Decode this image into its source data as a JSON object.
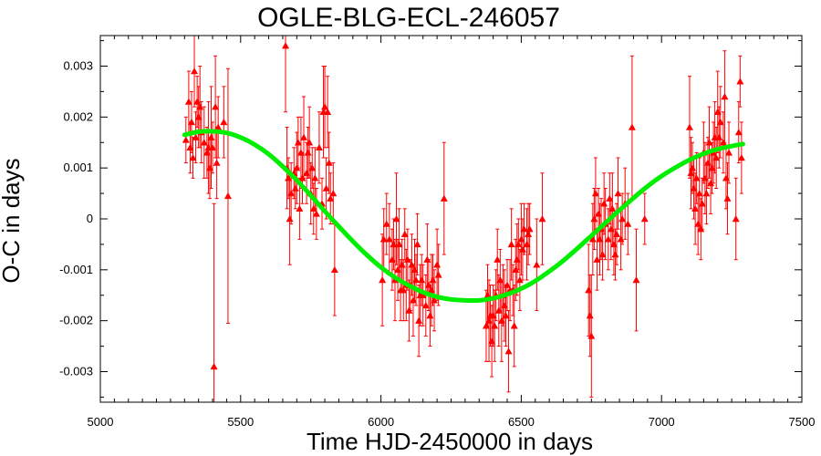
{
  "chart_data": {
    "type": "scatter",
    "title": "OGLE-BLG-ECL-246057",
    "xlabel": "Time HJD-2450000 in days",
    "ylabel": "O-C in days",
    "xlim": [
      5000,
      7500
    ],
    "ylim": [
      -0.0036,
      0.0036
    ],
    "xticks": [
      5000,
      5500,
      6000,
      6500,
      7000,
      7500
    ],
    "xtick_labels": [
      "5000",
      "5500",
      "6000",
      "6500",
      "7000",
      "7500"
    ],
    "yticks": [
      -0.003,
      -0.002,
      -0.001,
      0,
      0.001,
      0.002,
      0.003
    ],
    "ytick_labels": [
      "-0.003",
      "-0.002",
      "-0.001",
      "0",
      "0.001",
      "0.002",
      "0.003"
    ],
    "grid": false,
    "legend": "none",
    "colors": {
      "points": "#ff0000",
      "fit": "#00ee00",
      "frame": "#000000"
    },
    "series": [
      {
        "type": "scatter_errorbar",
        "points": [
          [
            5305,
            0.00155,
            0.00045
          ],
          [
            5315,
            0.0023,
            0.0006
          ],
          [
            5320,
            0.0014,
            0.0005
          ],
          [
            5325,
            0.0019,
            0.0006
          ],
          [
            5330,
            0.0012,
            0.0004
          ],
          [
            5335,
            0.0029,
            0.0007
          ],
          [
            5340,
            0.0016,
            0.0005
          ],
          [
            5345,
            0.0023,
            0.0005
          ],
          [
            5350,
            0.002,
            0.0006
          ],
          [
            5355,
            0.0022,
            0.0008
          ],
          [
            5360,
            0.0017,
            0.0006
          ],
          [
            5370,
            0.0015,
            0.0007
          ],
          [
            5380,
            0.0013,
            0.0005
          ],
          [
            5385,
            0.0014,
            0.0009
          ],
          [
            5390,
            0.001,
            0.0006
          ],
          [
            5395,
            0.0016,
            0.001
          ],
          [
            5400,
            0.0014,
            0.0005
          ],
          [
            5405,
            -0.0029,
            0.0032
          ],
          [
            5410,
            0.0022,
            0.001
          ],
          [
            5415,
            0.0011,
            0.0007
          ],
          [
            5420,
            0.0018,
            0.0006
          ],
          [
            5440,
            0.0019,
            0.0007
          ],
          [
            5455,
            0.00045,
            0.0025
          ],
          [
            5660,
            0.0034,
            0.0013
          ],
          [
            5665,
            0.001,
            0.0008
          ],
          [
            5670,
            0.0008,
            0.0004
          ],
          [
            5675,
            0.0,
            0.0009
          ],
          [
            5680,
            0.0005,
            0.0006
          ],
          [
            5690,
            0.0009,
            0.0005
          ],
          [
            5695,
            0.0006,
            0.0004
          ],
          [
            5700,
            0.001,
            0.0007
          ],
          [
            5705,
            0.0015,
            0.0005
          ],
          [
            5710,
            0.0002,
            0.0006
          ],
          [
            5715,
            0.0013,
            0.0007
          ],
          [
            5720,
            0.0008,
            0.0005
          ],
          [
            5725,
            0.0016,
            0.0008
          ],
          [
            5735,
            0.0009,
            0.0006
          ],
          [
            5740,
            0.0013,
            0.0005
          ],
          [
            5745,
            0.0015,
            0.0007
          ],
          [
            5750,
            0.0005,
            0.0006
          ],
          [
            5755,
            0.001,
            0.0004
          ],
          [
            5760,
            0.0002,
            0.0005
          ],
          [
            5765,
            0.0008,
            0.0006
          ],
          [
            5770,
            0.0001,
            0.0005
          ],
          [
            5780,
            0.0014,
            0.0007
          ],
          [
            5790,
            0.0003,
            0.0005
          ],
          [
            5795,
            0.0021,
            0.0009
          ],
          [
            5800,
            0.0022,
            0.0008
          ],
          [
            5805,
            0.0006,
            0.0006
          ],
          [
            5810,
            0.0021,
            0.0007
          ],
          [
            5815,
            0.0011,
            0.0006
          ],
          [
            5820,
            0.0004,
            0.0005
          ],
          [
            5830,
            0.0005,
            0.0006
          ],
          [
            5835,
            -0.001,
            0.0009
          ],
          [
            6005,
            -0.0012,
            0.0009
          ],
          [
            6010,
            -0.0004,
            0.0006
          ],
          [
            6020,
            -0.0001,
            0.0006
          ],
          [
            6030,
            -0.0004,
            0.0007
          ],
          [
            6040,
            -0.0008,
            0.0006
          ],
          [
            6045,
            -0.0005,
            0.0005
          ],
          [
            6050,
            -0.0012,
            0.0008
          ],
          [
            6055,
            0.0,
            0.0009
          ],
          [
            6060,
            -0.001,
            0.0006
          ],
          [
            6065,
            -0.0005,
            0.0007
          ],
          [
            6070,
            -0.0014,
            0.0006
          ],
          [
            6075,
            -0.0009,
            0.0005
          ],
          [
            6080,
            -0.0014,
            0.0006
          ],
          [
            6085,
            -0.0003,
            0.0005
          ],
          [
            6090,
            -0.0013,
            0.0007
          ],
          [
            6095,
            -0.0008,
            0.0006
          ],
          [
            6100,
            -0.0018,
            0.0006
          ],
          [
            6105,
            -0.0013,
            0.0005
          ],
          [
            6110,
            -0.0009,
            0.0006
          ],
          [
            6115,
            -0.0016,
            0.0007
          ],
          [
            6120,
            -0.001,
            0.0006
          ],
          [
            6125,
            -0.0012,
            0.0005
          ],
          [
            6130,
            -0.0005,
            0.0006
          ],
          [
            6135,
            -0.002,
            0.0007
          ],
          [
            6140,
            -0.0015,
            0.0006
          ],
          [
            6145,
            -0.0012,
            0.0005
          ],
          [
            6150,
            -0.0015,
            0.0006
          ],
          [
            6160,
            -0.0017,
            0.0006
          ],
          [
            6165,
            -0.0008,
            0.0007
          ],
          [
            6170,
            -0.0013,
            0.0005
          ],
          [
            6175,
            -0.0019,
            0.0006
          ],
          [
            6180,
            -0.0014,
            0.0007
          ],
          [
            6185,
            -0.0012,
            0.0005
          ],
          [
            6190,
            -0.0016,
            0.0006
          ],
          [
            6200,
            -0.0009,
            0.0007
          ],
          [
            6205,
            -0.0011,
            0.0006
          ],
          [
            6225,
            0.0004,
            0.0011
          ],
          [
            6375,
            -0.0021,
            0.0007
          ],
          [
            6380,
            -0.0015,
            0.0006
          ],
          [
            6385,
            -0.002,
            0.0008
          ],
          [
            6390,
            -0.0019,
            0.0006
          ],
          [
            6395,
            -0.0024,
            0.0007
          ],
          [
            6400,
            -0.0019,
            0.0006
          ],
          [
            6405,
            -0.0021,
            0.0007
          ],
          [
            6410,
            -0.0015,
            0.0005
          ],
          [
            6415,
            -0.0008,
            0.0006
          ],
          [
            6420,
            -0.0018,
            0.0007
          ],
          [
            6425,
            -0.0012,
            0.0006
          ],
          [
            6430,
            -0.002,
            0.0008
          ],
          [
            6435,
            -0.0015,
            0.0006
          ],
          [
            6440,
            -0.0017,
            0.0007
          ],
          [
            6445,
            -0.0019,
            0.0006
          ],
          [
            6450,
            -0.0013,
            0.0005
          ],
          [
            6455,
            -0.0026,
            0.0008
          ],
          [
            6460,
            -0.0014,
            0.0006
          ],
          [
            6465,
            -0.0005,
            0.0007
          ],
          [
            6470,
            -0.0014,
            0.0005
          ],
          [
            6475,
            -0.0021,
            0.0008
          ],
          [
            6480,
            -0.001,
            0.0006
          ],
          [
            6485,
            -0.0008,
            0.0007
          ],
          [
            6490,
            -0.0005,
            0.0005
          ],
          [
            6495,
            -0.0012,
            0.0006
          ],
          [
            6500,
            -0.0004,
            0.0007
          ],
          [
            6505,
            -0.0006,
            0.0006
          ],
          [
            6510,
            -0.0002,
            0.0005
          ],
          [
            6520,
            -0.0005,
            0.0007
          ],
          [
            6525,
            -0.0003,
            0.0006
          ],
          [
            6530,
            -0.0002,
            0.0005
          ],
          [
            6555,
            -0.0009,
            0.0009
          ],
          [
            6575,
            0.0,
            0.0009
          ],
          [
            6740,
            -0.0014,
            0.0009
          ],
          [
            6745,
            -0.0019,
            0.0008
          ],
          [
            6750,
            -0.0023,
            0.0012
          ],
          [
            6755,
            -0.0004,
            0.0007
          ],
          [
            6760,
            0.0,
            0.0006
          ],
          [
            6765,
            0.0005,
            0.0007
          ],
          [
            6770,
            -0.0008,
            0.0006
          ],
          [
            6775,
            0.0001,
            0.0005
          ],
          [
            6780,
            -0.0004,
            0.0007
          ],
          [
            6785,
            -0.0002,
            0.0006
          ],
          [
            6790,
            -0.0007,
            0.0005
          ],
          [
            6795,
            0.0003,
            0.0006
          ],
          [
            6800,
            -0.0001,
            0.0007
          ],
          [
            6810,
            -0.0004,
            0.0006
          ],
          [
            6815,
            0.0004,
            0.0005
          ],
          [
            6820,
            -0.0002,
            0.0006
          ],
          [
            6825,
            0.0002,
            0.0007
          ],
          [
            6830,
            -0.0005,
            0.0006
          ],
          [
            6835,
            -0.0007,
            0.0005
          ],
          [
            6840,
            -0.0003,
            0.0006
          ],
          [
            6845,
            0.0005,
            0.0007
          ],
          [
            6855,
            -0.0004,
            0.0006
          ],
          [
            6860,
            0.0,
            0.0005
          ],
          [
            6870,
            0.0003,
            0.0007
          ],
          [
            6880,
            -0.0001,
            0.0006
          ],
          [
            6895,
            0.0018,
            0.0014
          ],
          [
            6910,
            -0.0012,
            0.001
          ],
          [
            6940,
            0.0,
            0.0005
          ],
          [
            7100,
            0.0018,
            0.001
          ],
          [
            7105,
            0.0009,
            0.0007
          ],
          [
            7110,
            0.001,
            0.0005
          ],
          [
            7115,
            0.0006,
            0.0006
          ],
          [
            7120,
            0.0002,
            0.0007
          ],
          [
            7125,
            0.0008,
            0.0005
          ],
          [
            7130,
            -0.0001,
            0.0006
          ],
          [
            7135,
            0.0005,
            0.0007
          ],
          [
            7140,
            -0.0002,
            0.0006
          ],
          [
            7145,
            0.0003,
            0.0005
          ],
          [
            7150,
            0.0013,
            0.0006
          ],
          [
            7155,
            0.0008,
            0.0007
          ],
          [
            7160,
            0.0005,
            0.0006
          ],
          [
            7165,
            0.0011,
            0.0005
          ],
          [
            7170,
            0.0015,
            0.0007
          ],
          [
            7175,
            0.0007,
            0.0006
          ],
          [
            7180,
            0.001,
            0.0005
          ],
          [
            7185,
            0.0013,
            0.0006
          ],
          [
            7190,
            0.0016,
            0.0007
          ],
          [
            7195,
            0.0012,
            0.0006
          ],
          [
            7200,
            0.0021,
            0.0008
          ],
          [
            7205,
            0.0016,
            0.0006
          ],
          [
            7210,
            0.0019,
            0.0007
          ],
          [
            7220,
            0.0015,
            0.0006
          ],
          [
            7225,
            0.0024,
            0.0009
          ],
          [
            7230,
            0.0008,
            0.0006
          ],
          [
            7235,
            0.0004,
            0.0007
          ],
          [
            7240,
            0.0013,
            0.0006
          ],
          [
            7265,
            0.0,
            0.0008
          ],
          [
            7275,
            0.0017,
            0.0006
          ],
          [
            7280,
            0.0027,
            0.0005
          ],
          [
            7285,
            0.0012,
            0.0007
          ]
        ]
      },
      {
        "type": "line",
        "x": [
          5300,
          5350,
          5400,
          5450,
          5500,
          5550,
          5600,
          5650,
          5700,
          5750,
          5800,
          5850,
          5900,
          5950,
          6000,
          6050,
          6100,
          6150,
          6200,
          6250,
          6300,
          6350,
          6400,
          6450,
          6500,
          6550,
          6600,
          6650,
          6700,
          6750,
          6800,
          6850,
          6900,
          6950,
          7000,
          7050,
          7100,
          7150,
          7200,
          7250,
          7290
        ],
        "y": [
          0.00165,
          0.00171,
          0.00172,
          0.00169,
          0.0016,
          0.00146,
          0.00127,
          0.00103,
          0.00076,
          0.00046,
          0.00015,
          -0.00015,
          -0.00044,
          -0.00071,
          -0.00095,
          -0.00115,
          -0.00131,
          -0.00144,
          -0.00153,
          -0.00158,
          -0.0016,
          -0.0016,
          -0.00156,
          -0.00148,
          -0.00137,
          -0.00122,
          -0.00103,
          -0.00082,
          -0.00058,
          -0.00033,
          -8e-05,
          0.00017,
          0.00041,
          0.00064,
          0.00084,
          0.00101,
          0.00116,
          0.00128,
          0.00137,
          0.00143,
          0.00147
        ]
      }
    ]
  }
}
